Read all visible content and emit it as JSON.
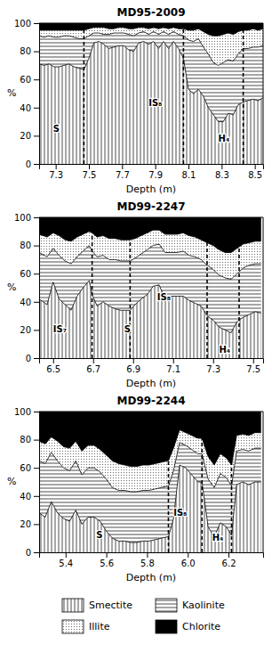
{
  "chart_data": [
    {
      "type": "area",
      "title": "MD95-2009",
      "x_label": "Depth (m)",
      "y_label": "%",
      "xlim": [
        7.2,
        8.55
      ],
      "ylim": [
        0,
        100
      ],
      "xticks": [
        7.3,
        7.5,
        7.7,
        7.9,
        8.1,
        8.3,
        8.5
      ],
      "yticks": [
        0,
        20,
        40,
        60,
        80,
        100
      ],
      "vlines": [
        7.47,
        8.07,
        8.43
      ],
      "annotations": [
        {
          "text": "S",
          "x": 7.285,
          "y": 25
        },
        {
          "text": "IS₈",
          "x": 7.86,
          "y": 43
        },
        {
          "text": "H₄",
          "x": 8.28,
          "y": 18
        }
      ],
      "x": [
        7.2,
        7.23,
        7.26,
        7.29,
        7.32,
        7.35,
        7.38,
        7.41,
        7.44,
        7.47,
        7.5,
        7.53,
        7.56,
        7.59,
        7.62,
        7.65,
        7.68,
        7.71,
        7.74,
        7.77,
        7.8,
        7.83,
        7.86,
        7.89,
        7.92,
        7.95,
        7.98,
        8.01,
        8.04,
        8.07,
        8.1,
        8.13,
        8.16,
        8.19,
        8.22,
        8.25,
        8.28,
        8.31,
        8.34,
        8.37,
        8.4,
        8.43,
        8.46,
        8.49,
        8.52,
        8.55
      ],
      "series": [
        {
          "name": "Smectite",
          "values": [
            71,
            70,
            71,
            69,
            69,
            70,
            71,
            69,
            68,
            67,
            75,
            86,
            87,
            85,
            82,
            83,
            84,
            84,
            81,
            80,
            86,
            87,
            85,
            87,
            82,
            87,
            82,
            87,
            82,
            75,
            53,
            50,
            53,
            48,
            40,
            35,
            30,
            30,
            36,
            35,
            42,
            44,
            45,
            46,
            45,
            47
          ]
        },
        {
          "name": "Kaolinite",
          "values": [
            91,
            90,
            91,
            90,
            90,
            91,
            91,
            90,
            89,
            89,
            91,
            93,
            93,
            92,
            92,
            93,
            93,
            93,
            92,
            91,
            93,
            94,
            92,
            94,
            92,
            94,
            92,
            94,
            92,
            91,
            88,
            87,
            89,
            83,
            78,
            72,
            70,
            72,
            74,
            73,
            78,
            82,
            82,
            83,
            83,
            84
          ]
        },
        {
          "name": "Illite",
          "values": [
            95,
            95,
            95,
            95,
            95,
            95,
            95,
            95,
            95,
            95,
            96,
            97,
            97,
            97,
            96,
            96,
            97,
            97,
            96,
            96,
            97,
            97,
            96,
            97,
            96,
            97,
            96,
            97,
            96,
            96,
            95,
            95,
            96,
            94,
            92,
            91,
            91,
            92,
            93,
            92,
            94,
            95,
            95,
            96,
            95,
            96
          ]
        },
        {
          "name": "Chlorite"
        }
      ]
    },
    {
      "type": "area",
      "title": "MD99-2247",
      "x_label": "Depth (m)",
      "y_label": "%",
      "xlim": [
        6.43,
        7.55
      ],
      "ylim": [
        0,
        100
      ],
      "xticks": [
        6.5,
        6.7,
        6.9,
        7.1,
        7.3,
        7.5
      ],
      "yticks": [
        0,
        20,
        40,
        60,
        80,
        100
      ],
      "vlines": [
        6.695,
        6.885,
        7.27,
        7.43
      ],
      "annotations": [
        {
          "text": "IS₇",
          "x": 6.5,
          "y": 20
        },
        {
          "text": "S",
          "x": 6.855,
          "y": 20
        },
        {
          "text": "IS₈",
          "x": 7.02,
          "y": 43
        },
        {
          "text": "H₄",
          "x": 7.33,
          "y": 6
        }
      ],
      "x": [
        6.43,
        6.47,
        6.5,
        6.53,
        6.56,
        6.59,
        6.62,
        6.65,
        6.68,
        6.695,
        6.72,
        6.75,
        6.78,
        6.81,
        6.84,
        6.885,
        6.91,
        6.94,
        6.97,
        7.0,
        7.03,
        7.06,
        7.09,
        7.12,
        7.15,
        7.18,
        7.21,
        7.24,
        7.27,
        7.3,
        7.33,
        7.36,
        7.39,
        7.42,
        7.45,
        7.48,
        7.51,
        7.54
      ],
      "series": [
        {
          "name": "Smectite",
          "values": [
            42,
            38,
            54,
            42,
            38,
            34,
            44,
            50,
            55,
            45,
            37,
            40,
            37,
            35,
            34,
            34,
            38,
            42,
            45,
            51,
            52,
            42,
            44,
            44,
            44,
            41,
            39,
            37,
            30,
            27,
            22,
            20,
            18,
            26,
            29,
            31,
            33,
            32
          ]
        },
        {
          "name": "Kaolinite",
          "values": [
            75,
            72,
            78,
            73,
            69,
            67,
            72,
            76,
            80,
            76,
            72,
            73,
            70,
            70,
            69,
            69,
            71,
            74,
            77,
            80,
            81,
            75,
            75,
            75,
            76,
            73,
            72,
            70,
            66,
            63,
            59,
            57,
            56,
            60,
            64,
            66,
            67,
            67
          ]
        },
        {
          "name": "Illite",
          "values": [
            88,
            86,
            89,
            87,
            84,
            83,
            86,
            88,
            90,
            89,
            86,
            87,
            85,
            85,
            84,
            84,
            85,
            87,
            89,
            91,
            91,
            88,
            88,
            88,
            89,
            87,
            86,
            84,
            82,
            80,
            77,
            75,
            75,
            78,
            81,
            82,
            83,
            83
          ]
        },
        {
          "name": "Chlorite"
        }
      ]
    },
    {
      "type": "area",
      "title": "MD99-2244",
      "x_label": "Depth (m)",
      "y_label": "%",
      "xlim": [
        5.27,
        6.37
      ],
      "ylim": [
        0,
        100
      ],
      "xticks": [
        5.4,
        5.6,
        5.8,
        {
          "value": 6.0,
          "label": "6.0"
        },
        6.2
      ],
      "yticks": [
        0,
        20,
        40,
        60,
        80,
        100
      ],
      "vlines": [
        5.905,
        6.07,
        6.215
      ],
      "annotations": [
        {
          "text": "S",
          "x": 5.55,
          "y": 12
        },
        {
          "text": "IS₈",
          "x": 5.93,
          "y": 28
        },
        {
          "text": "H₄",
          "x": 6.12,
          "y": 10
        }
      ],
      "x": [
        5.27,
        5.3,
        5.33,
        5.36,
        5.39,
        5.42,
        5.45,
        5.48,
        5.51,
        5.54,
        5.57,
        5.6,
        5.63,
        5.66,
        5.69,
        5.72,
        5.75,
        5.78,
        5.81,
        5.84,
        5.87,
        5.9,
        5.905,
        5.93,
        5.96,
        5.99,
        6.02,
        6.05,
        6.07,
        6.1,
        6.13,
        6.16,
        6.19,
        6.215,
        6.24,
        6.27,
        6.3,
        6.33,
        6.36
      ],
      "series": [
        {
          "name": "Smectite",
          "values": [
            28,
            25,
            36,
            28,
            24,
            22,
            30,
            20,
            25,
            25,
            22,
            15,
            10,
            8,
            8,
            7,
            7,
            8,
            8,
            9,
            10,
            11,
            11,
            24,
            62,
            60,
            55,
            50,
            50,
            18,
            11,
            21,
            18,
            12,
            48,
            50,
            48,
            50,
            50
          ]
        },
        {
          "name": "Kaolinite",
          "values": [
            65,
            63,
            71,
            65,
            60,
            58,
            65,
            55,
            60,
            60,
            57,
            52,
            46,
            44,
            44,
            43,
            43,
            44,
            44,
            45,
            46,
            47,
            47,
            58,
            78,
            76,
            73,
            70,
            70,
            52,
            46,
            56,
            53,
            47,
            72,
            73,
            72,
            74,
            74
          ]
        },
        {
          "name": "Illite",
          "values": [
            79,
            77,
            82,
            79,
            75,
            74,
            79,
            72,
            76,
            76,
            73,
            69,
            65,
            63,
            62,
            61,
            61,
            62,
            62,
            63,
            64,
            65,
            65,
            74,
            87,
            85,
            83,
            81,
            81,
            68,
            62,
            70,
            67,
            62,
            83,
            84,
            83,
            85,
            85
          ]
        },
        {
          "name": "Chlorite"
        }
      ]
    }
  ]
}
